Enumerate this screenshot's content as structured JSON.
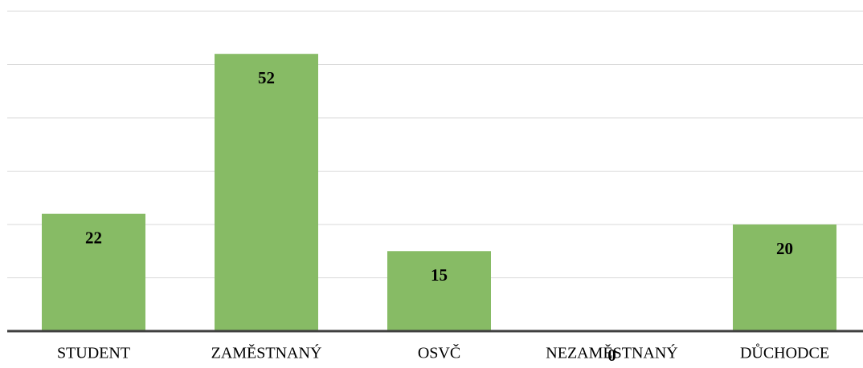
{
  "chart_data": {
    "type": "bar",
    "categories": [
      "STUDENT",
      "ZAMĚSTNANÝ",
      "OSVČ",
      "NEZAMĚSTNANÝ",
      "DŮCHODCE"
    ],
    "values": [
      22,
      52,
      15,
      0,
      20
    ],
    "color": "#87bb65",
    "ylim": [
      0,
      60
    ],
    "yticks": [
      0,
      10,
      20,
      30,
      40,
      50,
      60
    ],
    "grid": true
  }
}
